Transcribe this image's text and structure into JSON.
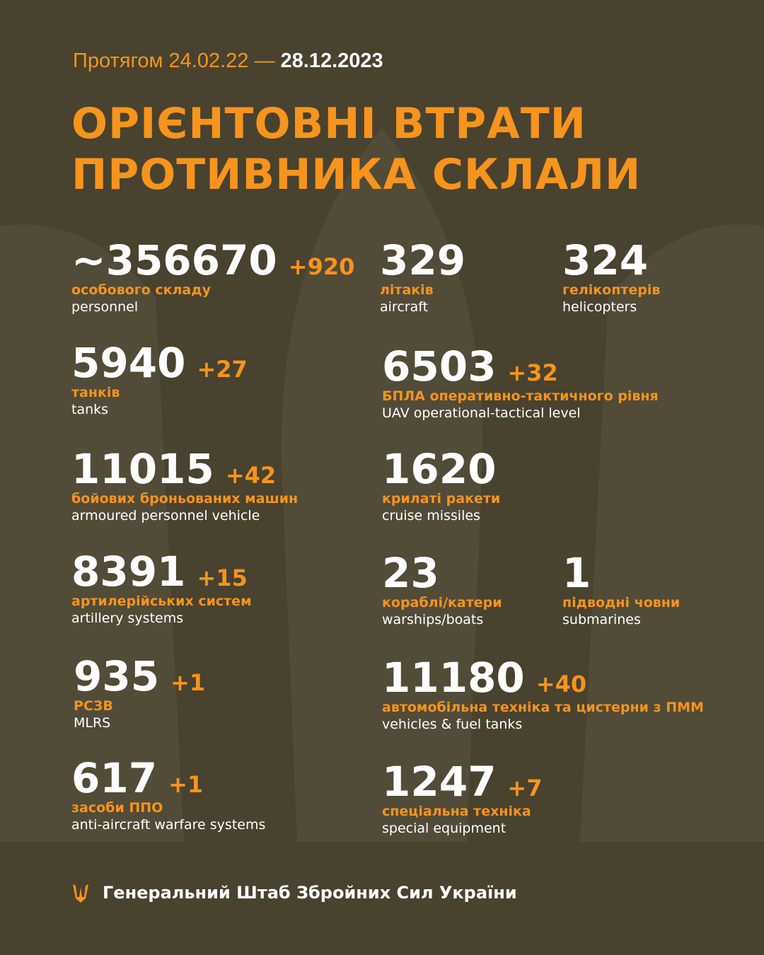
{
  "header": {
    "period_prefix": "Протягом 24.02.22 —",
    "period_end": "28.12.2023",
    "title_lines": [
      "ОРІЄНТОВНІ ВТРАТИ",
      "ПРОТИВНИКА СКЛАЛИ"
    ]
  },
  "items": [
    {
      "value": "~356670",
      "delta": "+920",
      "label_uk": "особового складу",
      "label_en": "personnel"
    },
    {
      "value": "329",
      "label_uk": "літаків",
      "label_en": "aircraft"
    },
    {
      "value": "324",
      "label_uk": "гелікоптерів",
      "label_en": "helicopters"
    },
    {
      "value": "5940",
      "delta": "+27",
      "label_uk": "танків",
      "label_en": "tanks"
    },
    {
      "value": "6503",
      "delta": "+32",
      "label_uk": "БПЛА оперативно-тактичного рівня",
      "label_en": "UAV operational-tactical level"
    },
    {
      "value": "11015",
      "delta": "+42",
      "label_uk": "бойових броньованих машин",
      "label_en": "armoured personnel vehicle"
    },
    {
      "value": "1620",
      "label_uk": "крилаті ракети",
      "label_en": "cruise missiles"
    },
    {
      "value": "8391",
      "delta": "+15",
      "label_uk": "артилерійських систем",
      "label_en": "artillery systems"
    },
    {
      "value": "23",
      "label_uk": "кораблі/катери",
      "label_en": "warships/boats"
    },
    {
      "value": "1",
      "label_uk": "підводні човни",
      "label_en": "submarines"
    },
    {
      "value": "935",
      "delta": "+1",
      "label_uk": "РСЗВ",
      "label_en": "MLRS"
    },
    {
      "value": "11180",
      "delta": "+40",
      "label_uk": "автомобільна техніка та цистерни з ПММ",
      "label_en": "vehicles & fuel tanks"
    },
    {
      "value": "617",
      "delta": "+1",
      "label_uk": "засоби ППО",
      "label_en": "anti-aircraft warfare systems"
    },
    {
      "value": "1247",
      "delta": "+7",
      "label_uk": "спеціальна техніка",
      "label_en": "special equipment"
    }
  ],
  "footer": {
    "org": "Генеральний Штаб Збройних Сил України"
  }
}
